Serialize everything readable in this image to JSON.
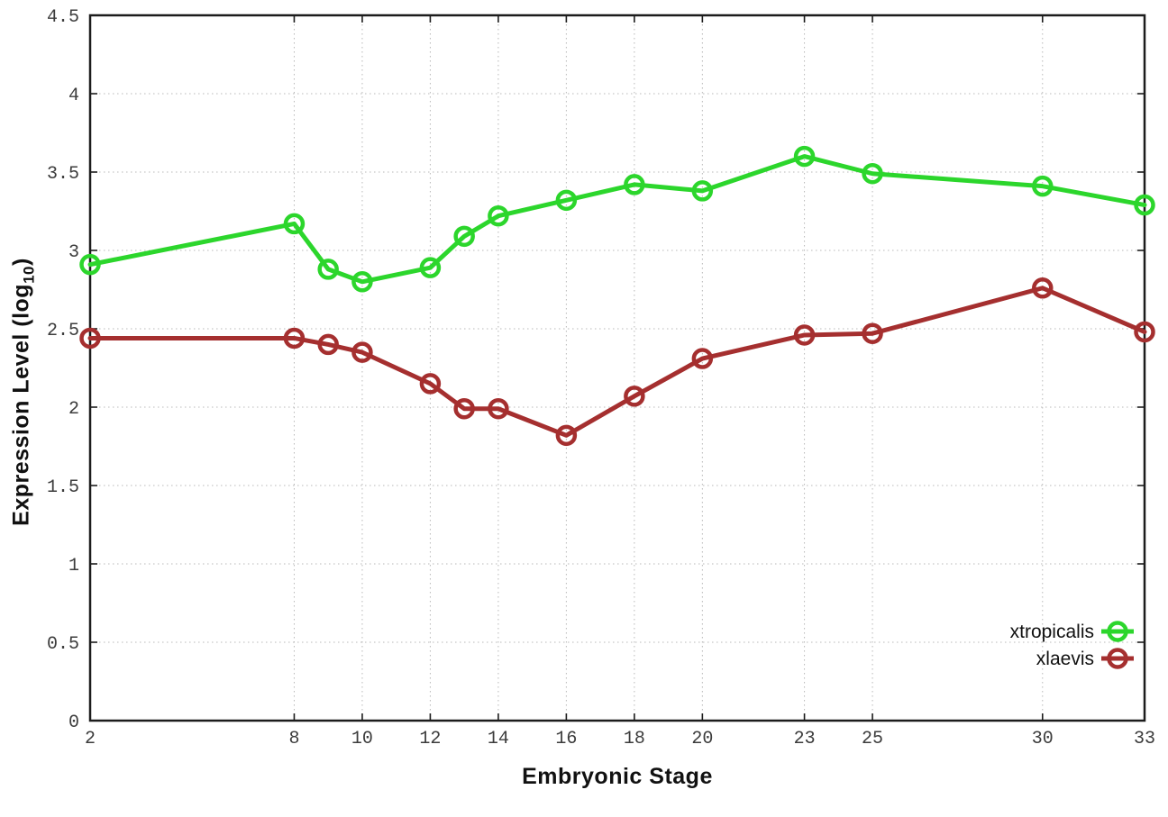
{
  "figure": {
    "background": "#ffffff",
    "xlabel": "Embryonic Stage",
    "ylabel_main": "Expression Level (log",
    "ylabel_sub": "10",
    "ylabel_close": ")"
  },
  "chart_data": {
    "type": "line",
    "title": "",
    "xlabel": "Embryonic Stage",
    "ylabel": "Expression Level (log10)",
    "x": [
      2,
      8,
      9,
      10,
      12,
      13,
      14,
      16,
      18,
      20,
      23,
      25,
      30,
      33
    ],
    "series": [
      {
        "name": "xtropicalis",
        "color": "#2cd62c",
        "values": [
          2.91,
          3.17,
          2.88,
          2.8,
          2.89,
          3.09,
          3.22,
          3.32,
          3.42,
          3.38,
          3.6,
          3.49,
          3.41,
          3.29
        ]
      },
      {
        "name": "xlaevis",
        "color": "#a52f2f",
        "values": [
          2.44,
          2.44,
          2.4,
          2.35,
          2.15,
          1.99,
          1.99,
          1.82,
          2.07,
          2.31,
          2.46,
          2.47,
          2.76,
          2.48
        ]
      }
    ],
    "xlim": [
      2,
      33
    ],
    "ylim": [
      0,
      4.5
    ],
    "x_ticks": [
      2,
      8,
      10,
      12,
      14,
      16,
      18,
      20,
      23,
      25,
      30,
      33
    ],
    "y_ticks": [
      0,
      0.5,
      1,
      1.5,
      2,
      2.5,
      3,
      3.5,
      4,
      4.5
    ],
    "grid": true,
    "grid_color": "#b8b8b8",
    "border_color": "#1c1c1c",
    "tick_label_color": "#3c3c3c",
    "legend_position": "bottom-right",
    "marker": "open-circle"
  }
}
